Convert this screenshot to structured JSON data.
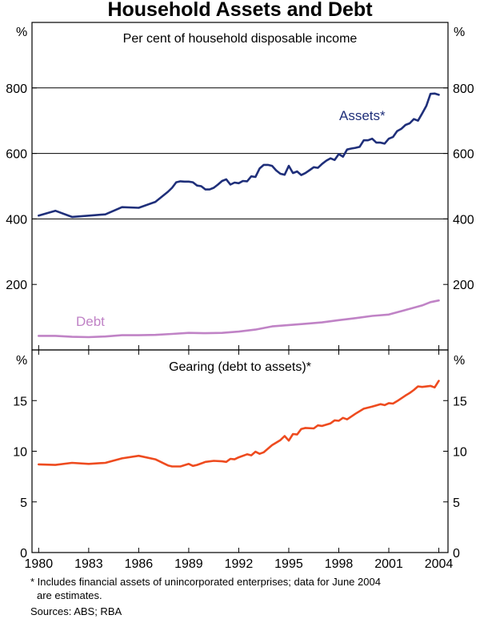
{
  "chart_data": {
    "type": "line",
    "title": "Household Assets and Debt",
    "panels": [
      {
        "id": "top",
        "subtitle": "Per cent of household disposable income",
        "unit_left": "%",
        "unit_right": "%",
        "ylim": [
          0,
          1000
        ],
        "ticks": [
          200,
          400,
          600,
          800
        ],
        "tick_labels": [
          "200",
          "400",
          "600",
          "800"
        ],
        "gridlines": [
          400,
          600,
          800
        ],
        "series": [
          {
            "name": "Assets",
            "label": "Assets*",
            "color": "#1f2f7a",
            "points": [
              [
                1980.0,
                410
              ],
              [
                1981.0,
                425
              ],
              [
                1982.0,
                406
              ],
              [
                1983.0,
                410
              ],
              [
                1984.0,
                414
              ],
              [
                1985.0,
                436
              ],
              [
                1986.0,
                434
              ],
              [
                1987.0,
                452
              ],
              [
                1987.75,
                483
              ],
              [
                1988.0,
                495
              ],
              [
                1988.25,
                512
              ],
              [
                1988.5,
                515
              ],
              [
                1988.75,
                514
              ],
              [
                1989.0,
                514
              ],
              [
                1989.25,
                512
              ],
              [
                1989.5,
                502
              ],
              [
                1989.75,
                500
              ],
              [
                1990.0,
                490
              ],
              [
                1990.25,
                490
              ],
              [
                1990.5,
                495
              ],
              [
                1990.75,
                505
              ],
              [
                1991.0,
                516
              ],
              [
                1991.25,
                521
              ],
              [
                1991.5,
                505
              ],
              [
                1991.75,
                511
              ],
              [
                1992.0,
                509
              ],
              [
                1992.25,
                516
              ],
              [
                1992.5,
                515
              ],
              [
                1992.75,
                530
              ],
              [
                1993.0,
                528
              ],
              [
                1993.25,
                554
              ],
              [
                1993.5,
                565
              ],
              [
                1993.75,
                565
              ],
              [
                1994.0,
                562
              ],
              [
                1994.25,
                548
              ],
              [
                1994.5,
                538
              ],
              [
                1994.75,
                535
              ],
              [
                1995.0,
                562
              ],
              [
                1995.25,
                540
              ],
              [
                1995.5,
                545
              ],
              [
                1995.75,
                534
              ],
              [
                1996.0,
                540
              ],
              [
                1996.25,
                549
              ],
              [
                1996.5,
                558
              ],
              [
                1996.75,
                556
              ],
              [
                1997.0,
                568
              ],
              [
                1997.25,
                578
              ],
              [
                1997.5,
                585
              ],
              [
                1997.75,
                580
              ],
              [
                1998.0,
                598
              ],
              [
                1998.25,
                590
              ],
              [
                1998.5,
                612
              ],
              [
                1998.75,
                615
              ],
              [
                1999.0,
                617
              ],
              [
                1999.25,
                620
              ],
              [
                1999.5,
                640
              ],
              [
                1999.75,
                640
              ],
              [
                2000.0,
                645
              ],
              [
                2000.25,
                633
              ],
              [
                2000.5,
                633
              ],
              [
                2000.75,
                630
              ],
              [
                2001.0,
                645
              ],
              [
                2001.25,
                650
              ],
              [
                2001.5,
                668
              ],
              [
                2001.75,
                675
              ],
              [
                2002.0,
                687
              ],
              [
                2002.25,
                692
              ],
              [
                2002.5,
                705
              ],
              [
                2002.75,
                700
              ],
              [
                2003.0,
                722
              ],
              [
                2003.25,
                745
              ],
              [
                2003.5,
                782
              ],
              [
                2003.75,
                783
              ],
              [
                2004.0,
                779
              ]
            ]
          },
          {
            "name": "Debt",
            "label": "Debt",
            "color": "#c083c6",
            "points": [
              [
                1980.0,
                43
              ],
              [
                1981.0,
                43
              ],
              [
                1982.0,
                40
              ],
              [
                1983.0,
                39
              ],
              [
                1984.0,
                41
              ],
              [
                1985.0,
                45
              ],
              [
                1986.0,
                45
              ],
              [
                1987.0,
                46
              ],
              [
                1988.0,
                49
              ],
              [
                1989.0,
                52
              ],
              [
                1990.0,
                51
              ],
              [
                1991.0,
                52
              ],
              [
                1992.0,
                56
              ],
              [
                1993.0,
                62
              ],
              [
                1994.0,
                72
              ],
              [
                1995.0,
                76
              ],
              [
                1996.0,
                80
              ],
              [
                1997.0,
                84
              ],
              [
                1998.0,
                91
              ],
              [
                1999.0,
                97
              ],
              [
                2000.0,
                104
              ],
              [
                2001.0,
                108
              ],
              [
                2002.0,
                122
              ],
              [
                2003.0,
                136
              ],
              [
                2003.5,
                146
              ],
              [
                2004.0,
                151
              ]
            ]
          }
        ]
      },
      {
        "id": "bottom",
        "subtitle": "Gearing (debt to assets)*",
        "unit_left": "%",
        "unit_right": "%",
        "ylim": [
          0,
          20
        ],
        "ticks": [
          0,
          5,
          10,
          15
        ],
        "tick_labels": [
          "0",
          "5",
          "10",
          "15"
        ],
        "gridlines": [],
        "series": [
          {
            "name": "Gearing",
            "label": "",
            "color": "#ee4b1f",
            "points": [
              [
                1980.0,
                8.7
              ],
              [
                1981.0,
                8.65
              ],
              [
                1982.0,
                8.85
              ],
              [
                1983.0,
                8.75
              ],
              [
                1984.0,
                8.85
              ],
              [
                1985.0,
                9.3
              ],
              [
                1986.0,
                9.55
              ],
              [
                1987.0,
                9.2
              ],
              [
                1987.75,
                8.6
              ],
              [
                1988.0,
                8.5
              ],
              [
                1988.5,
                8.5
              ],
              [
                1989.0,
                8.75
              ],
              [
                1989.25,
                8.55
              ],
              [
                1989.5,
                8.65
              ],
              [
                1990.0,
                8.95
              ],
              [
                1990.5,
                9.05
              ],
              [
                1991.0,
                9.0
              ],
              [
                1991.25,
                8.95
              ],
              [
                1991.5,
                9.25
              ],
              [
                1991.75,
                9.2
              ],
              [
                1992.0,
                9.4
              ],
              [
                1992.5,
                9.7
              ],
              [
                1992.75,
                9.6
              ],
              [
                1993.0,
                9.95
              ],
              [
                1993.25,
                9.75
              ],
              [
                1993.5,
                9.9
              ],
              [
                1994.0,
                10.6
              ],
              [
                1994.5,
                11.1
              ],
              [
                1994.75,
                11.5
              ],
              [
                1995.0,
                11.05
              ],
              [
                1995.25,
                11.7
              ],
              [
                1995.5,
                11.65
              ],
              [
                1995.75,
                12.2
              ],
              [
                1996.0,
                12.3
              ],
              [
                1996.5,
                12.25
              ],
              [
                1996.75,
                12.55
              ],
              [
                1997.0,
                12.5
              ],
              [
                1997.5,
                12.75
              ],
              [
                1997.75,
                13.05
              ],
              [
                1998.0,
                13.0
              ],
              [
                1998.25,
                13.3
              ],
              [
                1998.5,
                13.15
              ],
              [
                1999.0,
                13.7
              ],
              [
                1999.5,
                14.2
              ],
              [
                2000.0,
                14.4
              ],
              [
                2000.5,
                14.65
              ],
              [
                2000.75,
                14.55
              ],
              [
                2001.0,
                14.75
              ],
              [
                2001.25,
                14.7
              ],
              [
                2001.5,
                14.95
              ],
              [
                2002.0,
                15.5
              ],
              [
                2002.25,
                15.75
              ],
              [
                2002.5,
                16.05
              ],
              [
                2002.75,
                16.4
              ],
              [
                2003.0,
                16.35
              ],
              [
                2003.5,
                16.45
              ],
              [
                2003.75,
                16.3
              ],
              [
                2004.0,
                16.95
              ]
            ]
          }
        ]
      }
    ],
    "x_ticks": [
      1980,
      1983,
      1986,
      1989,
      1992,
      1995,
      1998,
      2001,
      2004
    ],
    "x_tick_labels": [
      "1980",
      "1983",
      "1986",
      "1989",
      "1992",
      "1995",
      "1998",
      "2001",
      "2004"
    ],
    "xlim": [
      1979.6,
      2004.55
    ],
    "footnote_lines": [
      "* Includes financial assets of unincorporated enterprises; data for June 2004",
      "are estimates."
    ],
    "sources": "Sources: ABS; RBA"
  }
}
